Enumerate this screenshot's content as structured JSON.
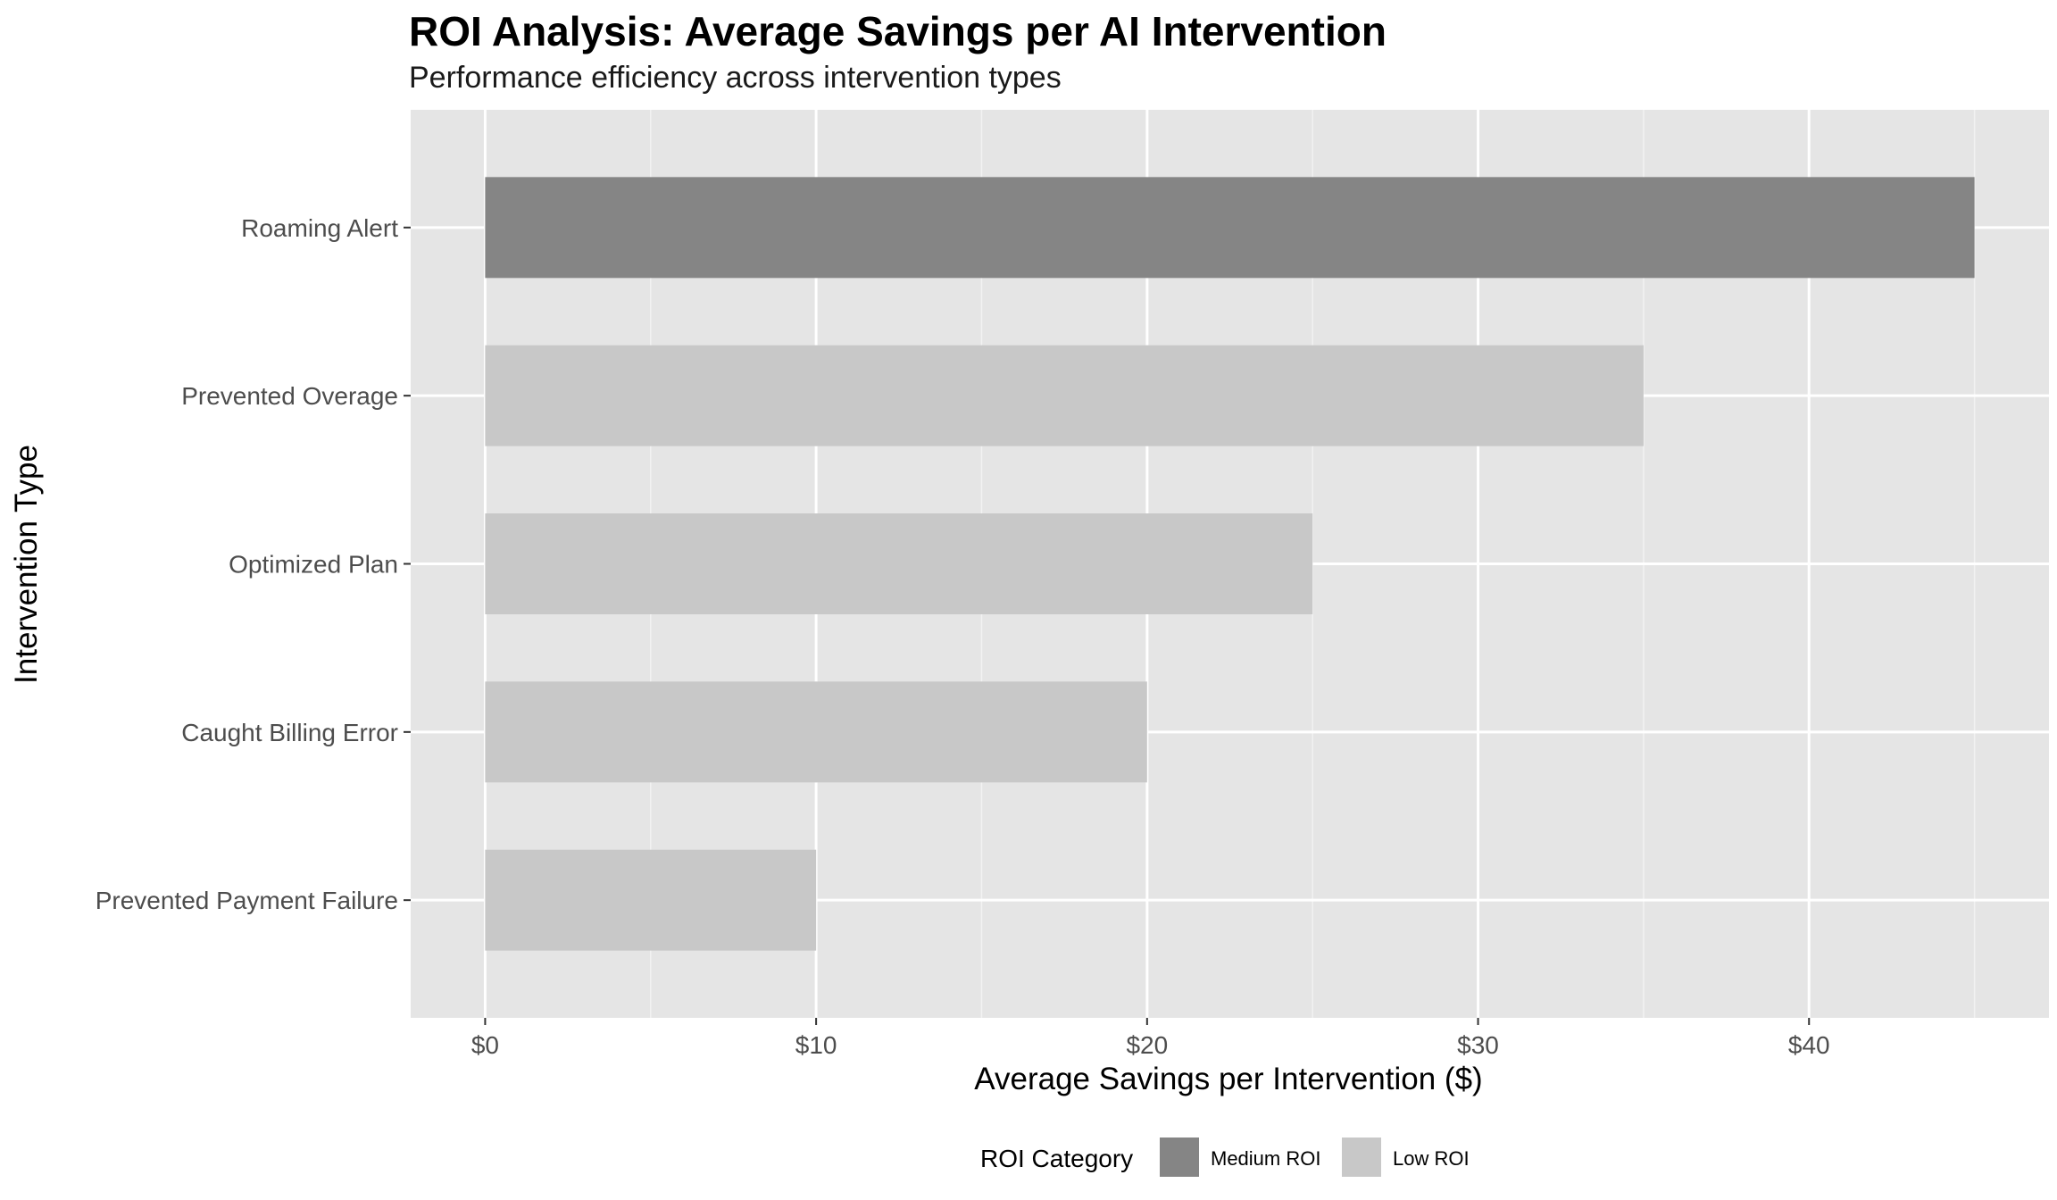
{
  "chart_data": {
    "type": "bar",
    "orientation": "horizontal",
    "title": "ROI Analysis: Average Savings per AI Intervention",
    "subtitle": "Performance efficiency across intervention types",
    "xlabel": "Average Savings per Intervention ($)",
    "ylabel": "Intervention Type",
    "xlim": [
      -2.25,
      47.25
    ],
    "x_ticks": [
      0,
      10,
      20,
      30,
      40
    ],
    "x_tick_labels": [
      "$0",
      "$10",
      "$20",
      "$30",
      "$40"
    ],
    "categories": [
      "Roaming Alert",
      "Prevented Overage",
      "Optimized Plan",
      "Caught Billing Error",
      "Prevented Payment Failure"
    ],
    "values": [
      45,
      35,
      25,
      20,
      10
    ],
    "roi_category": [
      "Medium ROI",
      "Low ROI",
      "Low ROI",
      "Low ROI",
      "Low ROI"
    ],
    "grid": true,
    "legend": {
      "title": "ROI Category",
      "position": "bottom",
      "entries": [
        {
          "label": "Medium ROI",
          "color": "#858585"
        },
        {
          "label": "Low ROI",
          "color": "#c8c8c8"
        }
      ]
    },
    "colors": {
      "panel": "#e5e5e5",
      "grid": "#ffffff"
    }
  }
}
